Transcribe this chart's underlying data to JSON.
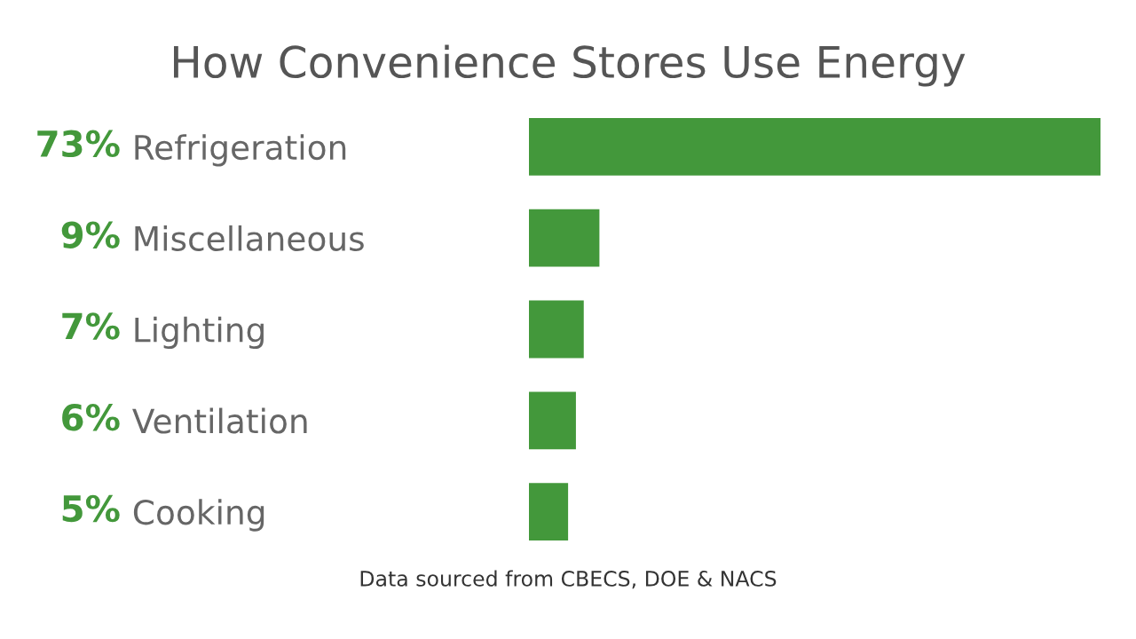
{
  "chart_data": {
    "type": "bar",
    "orientation": "horizontal",
    "title": "How Convenience Stores Use Energy",
    "categories": [
      "Refrigeration",
      "Miscellaneous",
      "Lighting",
      "Ventilation",
      "Cooking"
    ],
    "values": [
      73,
      9,
      7,
      6,
      5
    ],
    "value_labels": [
      "73%",
      "9%",
      "7%",
      "6%",
      "5%"
    ],
    "color": "#43983b",
    "tick_labels": "y",
    "grid": false,
    "legend": false,
    "annotations": [
      "Data sourced from CBECS, DOE & NACS"
    ]
  }
}
